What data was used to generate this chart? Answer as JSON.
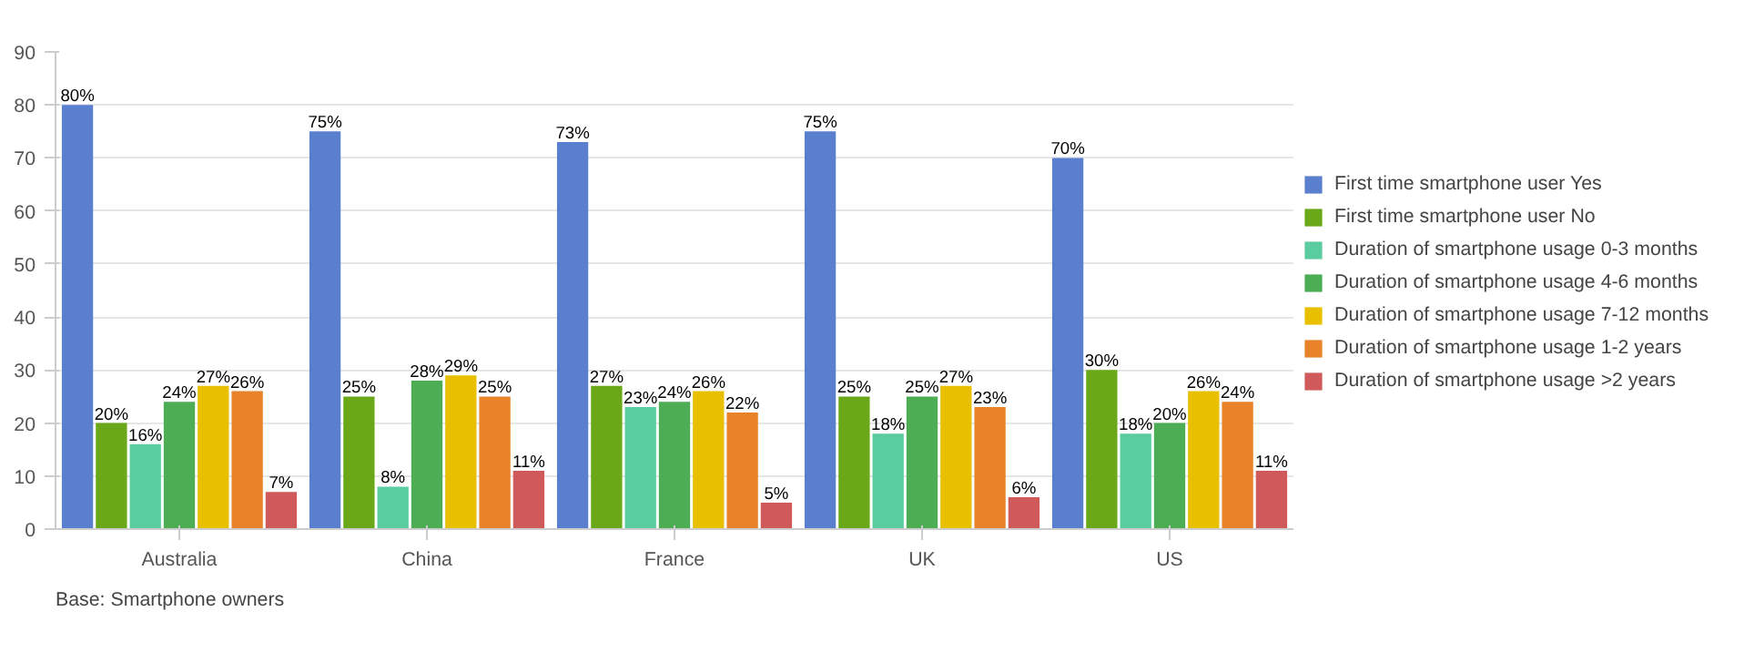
{
  "chart_data": {
    "type": "bar",
    "categories": [
      "Australia",
      "China",
      "France",
      "UK",
      "US"
    ],
    "series": [
      {
        "name": "First time smartphone user Yes",
        "color": "#5b7fcf",
        "values": [
          80,
          75,
          73,
          75,
          70
        ],
        "value_labels": [
          "80%",
          "75%",
          "73%",
          "75%",
          "70%"
        ]
      },
      {
        "name": "First time smartphone user No",
        "color": "#6aa81a",
        "values": [
          20,
          25,
          27,
          25,
          30
        ],
        "value_labels": [
          "20%",
          "25%",
          "27%",
          "25%",
          "30%"
        ]
      },
      {
        "name": "Duration of smartphone usage 0-3 months",
        "color": "#5bcba0",
        "values": [
          16,
          8,
          23,
          18,
          18
        ],
        "value_labels": [
          "16%",
          "8%",
          "23%",
          "18%",
          "18%"
        ]
      },
      {
        "name": "Duration of smartphone usage 4-6 months",
        "color": "#4cad55",
        "values": [
          24,
          28,
          24,
          25,
          20
        ],
        "value_labels": [
          "24%",
          "28%",
          "24%",
          "25%",
          "20%"
        ]
      },
      {
        "name": "Duration of smartphone usage 7-12 months",
        "color": "#e8c000",
        "values": [
          27,
          29,
          26,
          27,
          26
        ],
        "value_labels": [
          "27%",
          "29%",
          "26%",
          "27%",
          "26%"
        ]
      },
      {
        "name": "Duration of smartphone usage 1-2 years",
        "color": "#e8832a",
        "values": [
          26,
          25,
          22,
          23,
          24
        ],
        "value_labels": [
          "26%",
          "25%",
          "22%",
          "23%",
          "24%"
        ]
      },
      {
        "name": "Duration of smartphone usage >2 years",
        "color": "#d05a5a",
        "values": [
          7,
          11,
          5,
          6,
          11
        ],
        "value_labels": [
          "7%",
          "11%",
          "5%",
          "6%",
          "11%"
        ]
      }
    ],
    "ylim": [
      0,
      90
    ],
    "yticks": [
      0,
      10,
      20,
      30,
      40,
      50,
      60,
      70,
      80,
      90
    ],
    "grid": "y",
    "legend": "right",
    "annotations": [
      "Base:  Smartphone owners"
    ]
  }
}
